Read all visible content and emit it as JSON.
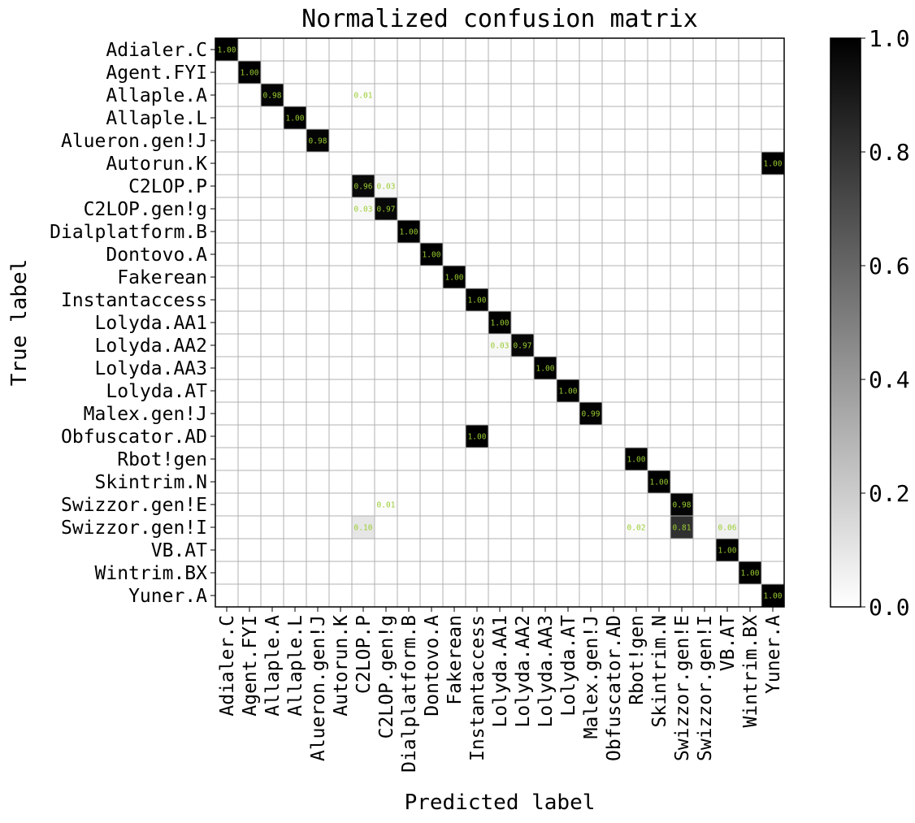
{
  "chart_data": {
    "type": "heatmap",
    "title": "Normalized confusion matrix",
    "xlabel": "Predicted label",
    "ylabel": "True label",
    "labels": [
      "Adialer.C",
      "Agent.FYI",
      "Allaple.A",
      "Allaple.L",
      "Alueron.gen!J",
      "Autorun.K",
      "C2LOP.P",
      "C2LOP.gen!g",
      "Dialplatform.B",
      "Dontovo.A",
      "Fakerean",
      "Instantaccess",
      "Lolyda.AA1",
      "Lolyda.AA2",
      "Lolyda.AA3",
      "Lolyda.AT",
      "Malex.gen!J",
      "Obfuscator.AD",
      "Rbot!gen",
      "Skintrim.N",
      "Swizzor.gen!E",
      "Swizzor.gen!I",
      "VB.AT",
      "Wintrim.BX",
      "Yuner.A"
    ],
    "cells": [
      {
        "row": 0,
        "col": 0,
        "value": 1.0,
        "label": "1.00"
      },
      {
        "row": 1,
        "col": 1,
        "value": 1.0,
        "label": "1.00"
      },
      {
        "row": 2,
        "col": 2,
        "value": 0.98,
        "label": "0.98"
      },
      {
        "row": 2,
        "col": 6,
        "value": 0.01,
        "label": "0.01"
      },
      {
        "row": 3,
        "col": 3,
        "value": 1.0,
        "label": "1.00"
      },
      {
        "row": 4,
        "col": 4,
        "value": 0.98,
        "label": "0.98"
      },
      {
        "row": 5,
        "col": 24,
        "value": 1.0,
        "label": "1.00"
      },
      {
        "row": 6,
        "col": 6,
        "value": 0.96,
        "label": "0.96"
      },
      {
        "row": 6,
        "col": 7,
        "value": 0.03,
        "label": "0.03"
      },
      {
        "row": 7,
        "col": 6,
        "value": 0.03,
        "label": "0.03"
      },
      {
        "row": 7,
        "col": 7,
        "value": 0.97,
        "label": "0.97"
      },
      {
        "row": 8,
        "col": 8,
        "value": 1.0,
        "label": "1.00"
      },
      {
        "row": 9,
        "col": 9,
        "value": 1.0,
        "label": "1.00"
      },
      {
        "row": 10,
        "col": 10,
        "value": 1.0,
        "label": "1.00"
      },
      {
        "row": 11,
        "col": 11,
        "value": 1.0,
        "label": "1.00"
      },
      {
        "row": 12,
        "col": 12,
        "value": 1.0,
        "label": "1.00"
      },
      {
        "row": 13,
        "col": 12,
        "value": 0.03,
        "label": "0.03"
      },
      {
        "row": 13,
        "col": 13,
        "value": 0.97,
        "label": "0.97"
      },
      {
        "row": 14,
        "col": 14,
        "value": 1.0,
        "label": "1.00"
      },
      {
        "row": 15,
        "col": 15,
        "value": 1.0,
        "label": "1.00"
      },
      {
        "row": 16,
        "col": 16,
        "value": 0.99,
        "label": "0.99"
      },
      {
        "row": 17,
        "col": 11,
        "value": 1.0,
        "label": "1.00"
      },
      {
        "row": 18,
        "col": 18,
        "value": 1.0,
        "label": "1.00"
      },
      {
        "row": 19,
        "col": 19,
        "value": 1.0,
        "label": "1.00"
      },
      {
        "row": 20,
        "col": 7,
        "value": 0.01,
        "label": "0.01"
      },
      {
        "row": 20,
        "col": 20,
        "value": 0.98,
        "label": "0.98"
      },
      {
        "row": 21,
        "col": 6,
        "value": 0.1,
        "label": "0.10"
      },
      {
        "row": 21,
        "col": 18,
        "value": 0.02,
        "label": "0.02"
      },
      {
        "row": 21,
        "col": 20,
        "value": 0.81,
        "label": "0.81"
      },
      {
        "row": 21,
        "col": 22,
        "value": 0.06,
        "label": "0.06"
      },
      {
        "row": 22,
        "col": 22,
        "value": 1.0,
        "label": "1.00"
      },
      {
        "row": 23,
        "col": 23,
        "value": 1.0,
        "label": "1.00"
      },
      {
        "row": 24,
        "col": 24,
        "value": 1.0,
        "label": "1.00"
      }
    ],
    "vrange": [
      0.0,
      1.0
    ],
    "colormap": "greys",
    "colorbar_ticks": [
      "0.0",
      "0.2",
      "0.4",
      "0.6",
      "0.8",
      "1.0"
    ],
    "cell_label_color": "#9acd32",
    "grid": true
  }
}
